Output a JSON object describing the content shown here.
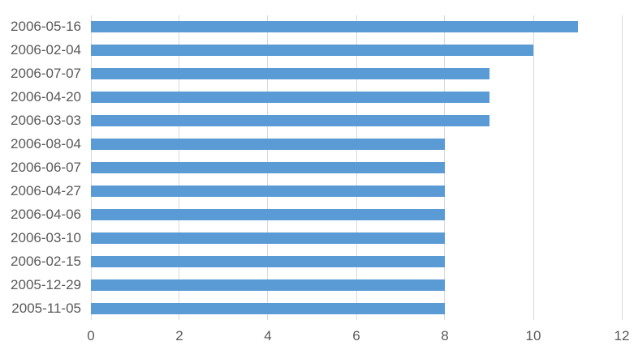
{
  "chart_data": {
    "type": "bar",
    "orientation": "horizontal",
    "title": "",
    "xlabel": "",
    "ylabel": "",
    "categories": [
      "2006-05-16",
      "2006-02-04",
      "2006-07-07",
      "2006-04-20",
      "2006-03-03",
      "2006-08-04",
      "2006-06-07",
      "2006-04-27",
      "2006-04-06",
      "2006-03-10",
      "2006-02-15",
      "2005-12-29",
      "2005-11-05"
    ],
    "values": [
      11,
      10,
      9,
      9,
      9,
      8,
      8,
      8,
      8,
      8,
      8,
      8,
      8
    ],
    "xlim": [
      0,
      12
    ],
    "x_ticks": [
      0,
      2,
      4,
      6,
      8,
      10,
      12
    ],
    "grid": true,
    "legend": false,
    "colors": {
      "bar": "#5B9BD5",
      "gridline": "#D9D9D9",
      "tick_label": "#595959",
      "background": "#FFFFFF"
    }
  }
}
